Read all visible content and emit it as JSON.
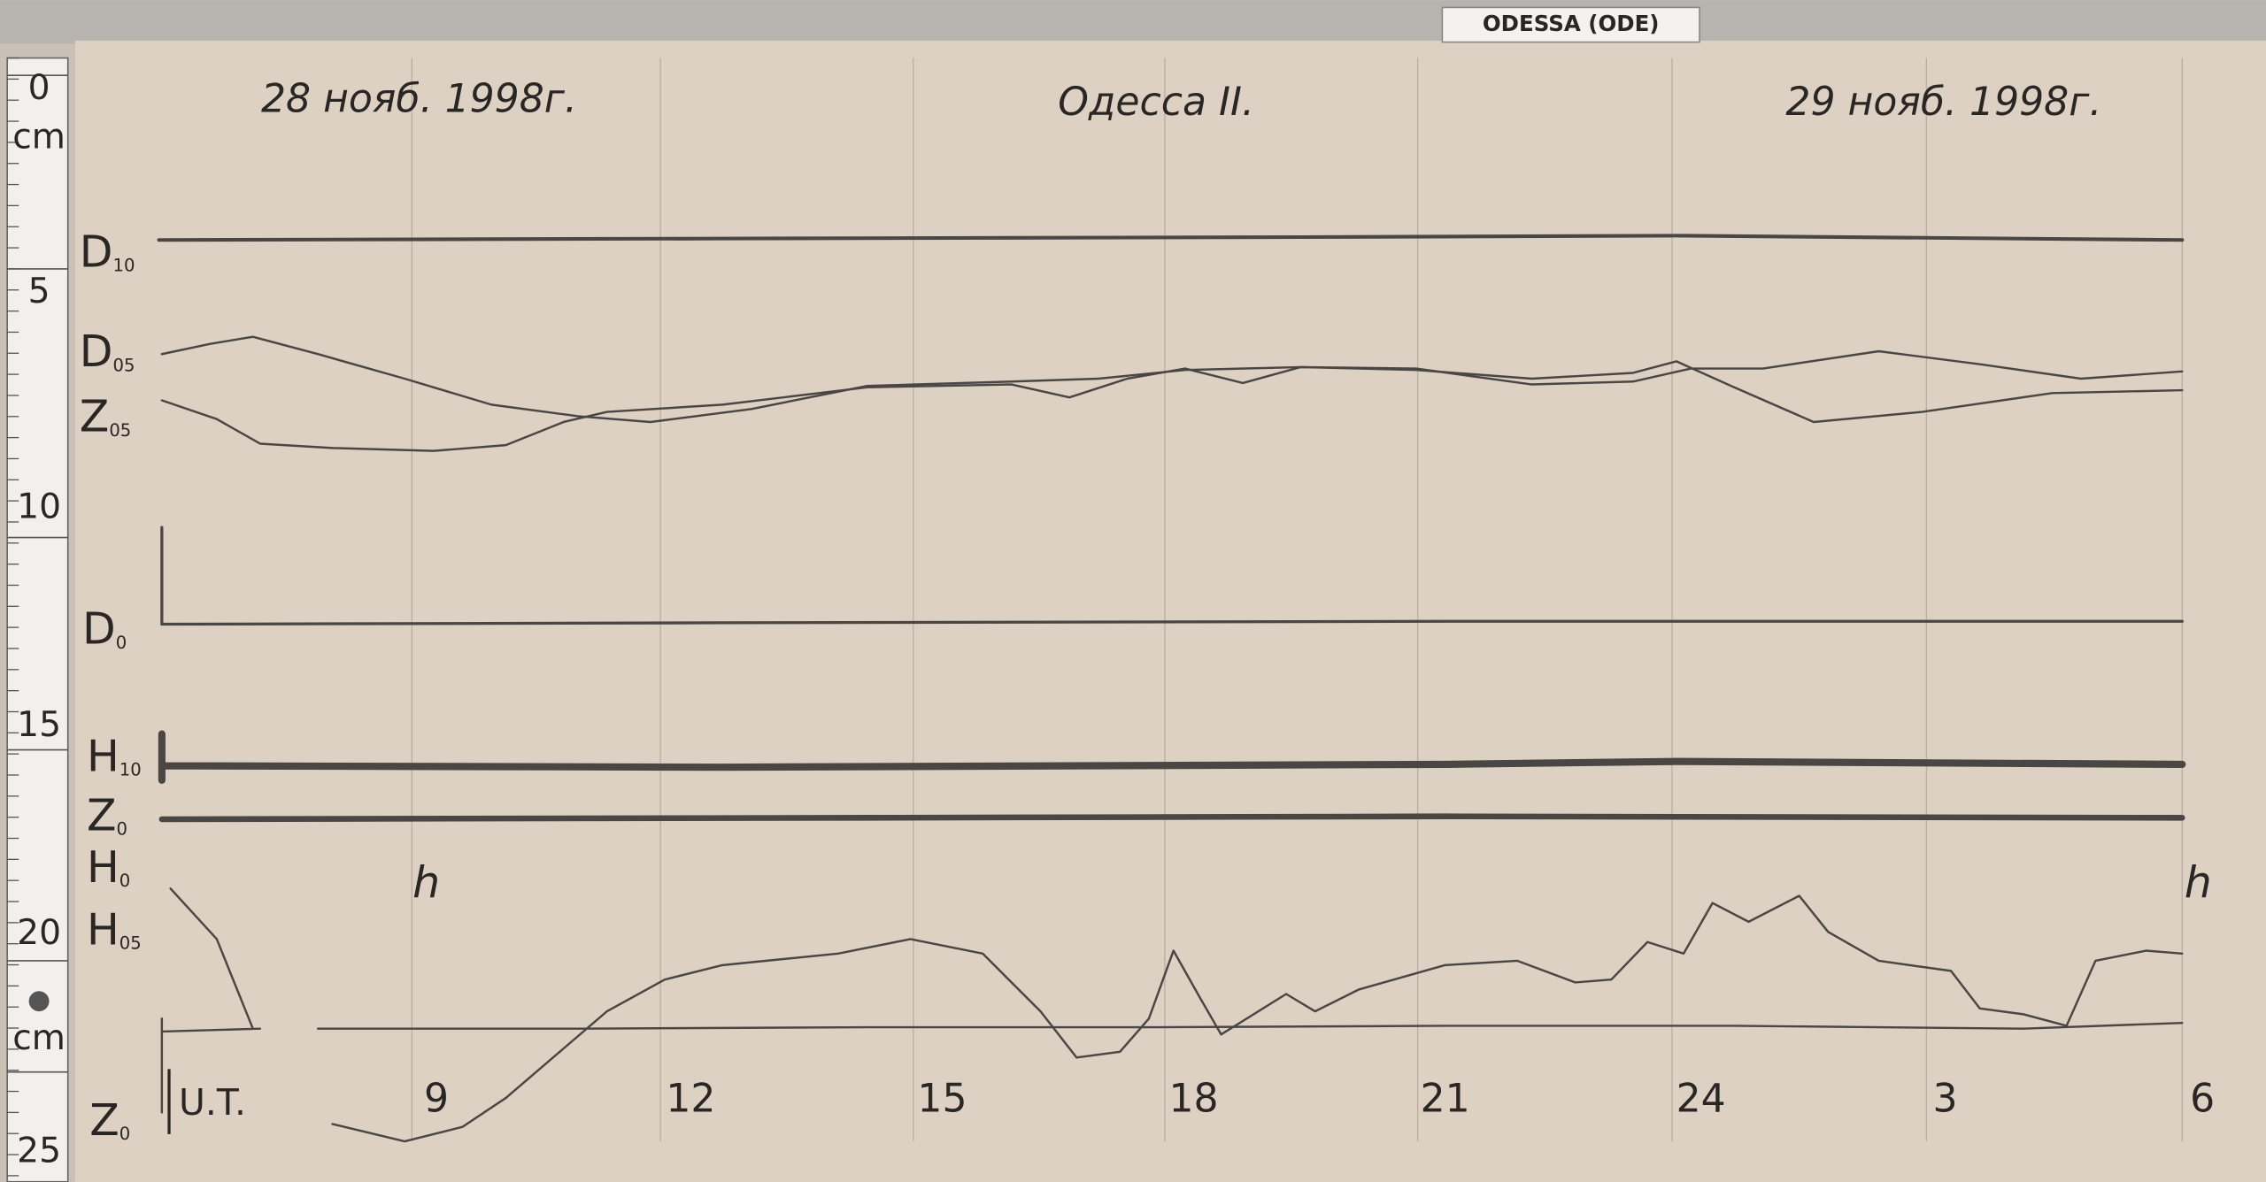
{
  "header": {
    "station_tag": "ODESSA (ODE)",
    "date_start": "28 нояб. 1998г.",
    "station": "Одесса II.",
    "date_end": "29 нояб. 1998г."
  },
  "ruler": {
    "labels": [
      "0",
      "cm",
      "5",
      "10",
      "15",
      "20",
      "cm",
      "25"
    ]
  },
  "traces": [
    {
      "letter": "D",
      "sub": "10"
    },
    {
      "letter": "D",
      "sub": "05"
    },
    {
      "letter": "Z",
      "sub": "05"
    },
    {
      "letter": "D",
      "sub": "0"
    },
    {
      "letter": "H",
      "sub": "10"
    },
    {
      "letter": "Z",
      "sub": "0"
    },
    {
      "letter": "H",
      "sub": "0"
    },
    {
      "letter": "H",
      "sub": "05"
    },
    {
      "letter": "Z",
      "sub": "0"
    }
  ],
  "marks": [
    "h",
    "h"
  ],
  "time_axis": {
    "label": "U.T.",
    "hours": [
      "9",
      "12",
      "15",
      "18",
      "21",
      "24",
      "3",
      "6"
    ]
  }
}
